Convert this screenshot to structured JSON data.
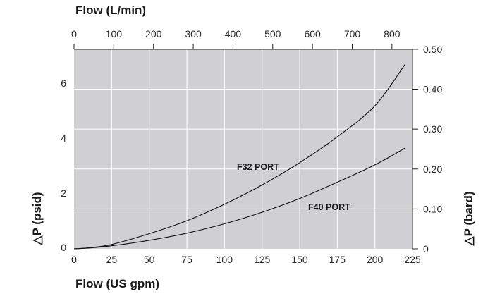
{
  "chart_data": {
    "type": "line",
    "top_axis_title": "Flow (L/min)",
    "bottom_axis_title": "Flow (US gpm)",
    "left_axis_title": "△P (psid)",
    "right_axis_title": "△P (bard)",
    "x_gpm_ticks": [
      "0",
      "25",
      "50",
      "75",
      "100",
      "125",
      "150",
      "175",
      "200",
      "225"
    ],
    "x_lpm_ticks": [
      "0",
      "100",
      "200",
      "300",
      "400",
      "500",
      "600",
      "700",
      "800"
    ],
    "y_psid_ticks": [
      "0",
      "2",
      "4",
      "6"
    ],
    "y_bar_ticks": [
      "0",
      "0.10",
      "0.20",
      "0.30",
      "0.40",
      "0.50"
    ],
    "xlim_gpm": [
      0,
      225
    ],
    "ylim_psid": [
      0,
      7.25
    ],
    "grid": true,
    "series": [
      {
        "name": "F32 PORT",
        "x": [
          0,
          10,
          25,
          50,
          75,
          100,
          125,
          150,
          175,
          200,
          220
        ],
        "y": [
          0,
          0.04,
          0.16,
          0.55,
          1.02,
          1.62,
          2.32,
          3.13,
          4.07,
          5.2,
          6.7
        ]
      },
      {
        "name": "F40 PORT",
        "x": [
          0,
          10,
          25,
          50,
          75,
          100,
          125,
          150,
          175,
          200,
          220
        ],
        "y": [
          0,
          0.03,
          0.11,
          0.31,
          0.57,
          0.91,
          1.33,
          1.83,
          2.42,
          3.05,
          3.66
        ]
      }
    ]
  }
}
